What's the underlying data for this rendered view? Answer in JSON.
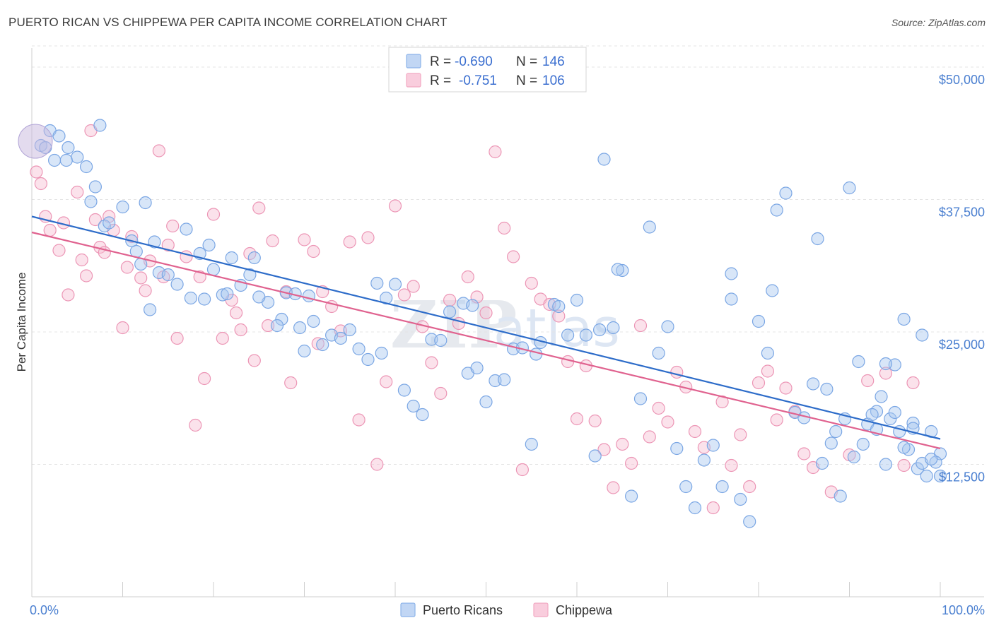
{
  "title": "PUERTO RICAN VS CHIPPEWA PER CAPITA INCOME CORRELATION CHART",
  "source": "Source: ZipAtlas.com",
  "watermark": {
    "zip": "ZIP",
    "atlas": "atlas"
  },
  "colors": {
    "blue": "#8db4ea",
    "blue_line": "#2d6cc9",
    "pink": "#f2a9c3",
    "pink_line": "#e0628f",
    "tick": "#4a7fd0"
  },
  "legend": {
    "r_label": "R =",
    "n_label": "N =",
    "rows": [
      {
        "r": "-0.690",
        "n": "146"
      },
      {
        "r": "-0.751",
        "n": "106"
      }
    ]
  },
  "chart_data": {
    "type": "scatter",
    "ylabel": "Per Capita Income",
    "x_tick_labels": [
      "0.0%",
      "100.0%"
    ],
    "y_tick_labels": [
      "$12,500",
      "$25,000",
      "$37,500",
      "$50,000"
    ],
    "y_ticks": [
      12500,
      25000,
      37500,
      50000
    ],
    "xlim": [
      0,
      100
    ],
    "ylim": [
      0,
      51000
    ],
    "grid": true,
    "legend_position": "top-center",
    "series": [
      {
        "name": "Puerto Ricans",
        "color": "#8db4ea",
        "trend": [
          [
            0,
            35900
          ],
          [
            100,
            14900
          ]
        ],
        "points": [
          [
            1,
            42.6
          ],
          [
            2,
            44.0
          ],
          [
            1.5,
            42.4
          ],
          [
            3,
            43.5
          ],
          [
            2.5,
            41.2
          ],
          [
            4,
            42.4
          ],
          [
            5,
            41.5
          ],
          [
            6,
            40.6
          ],
          [
            7,
            38.7
          ],
          [
            6.5,
            37.3
          ],
          [
            3.8,
            41.2
          ],
          [
            7.5,
            44.5
          ],
          [
            8,
            35.0
          ],
          [
            8.5,
            35.3
          ],
          [
            10,
            36.8
          ],
          [
            11,
            33.6
          ],
          [
            12.5,
            37.2
          ],
          [
            11.5,
            32.6
          ],
          [
            12,
            31.4
          ],
          [
            13.5,
            33.5
          ],
          [
            14,
            30.6
          ],
          [
            13,
            27.1
          ],
          [
            15,
            30.4
          ],
          [
            16,
            29.5
          ],
          [
            17,
            34.7
          ],
          [
            18.5,
            32.4
          ],
          [
            19,
            28.1
          ],
          [
            17.5,
            28.2
          ],
          [
            20,
            30.9
          ],
          [
            21,
            28.5
          ],
          [
            22,
            32.0
          ],
          [
            19.5,
            33.2
          ],
          [
            21.5,
            28.6
          ],
          [
            23,
            29.4
          ],
          [
            24.5,
            32.0
          ],
          [
            24,
            30.4
          ],
          [
            26,
            27.8
          ],
          [
            25,
            28.3
          ],
          [
            27.5,
            26.2
          ],
          [
            28,
            28.7
          ],
          [
            27,
            25.6
          ],
          [
            29,
            28.6
          ],
          [
            30.5,
            28.4
          ],
          [
            31,
            26.0
          ],
          [
            29.5,
            25.4
          ],
          [
            32,
            23.8
          ],
          [
            33,
            24.7
          ],
          [
            34,
            24.4
          ],
          [
            35,
            25.2
          ],
          [
            36,
            23.4
          ],
          [
            37,
            22.4
          ],
          [
            38,
            29.6
          ],
          [
            39,
            28.2
          ],
          [
            40,
            29.5
          ],
          [
            41,
            19.5
          ],
          [
            42,
            18.0
          ],
          [
            43,
            17.2
          ],
          [
            44,
            24.3
          ],
          [
            45,
            24.2
          ],
          [
            46,
            26.9
          ],
          [
            47.5,
            27.7
          ],
          [
            48,
            21.1
          ],
          [
            49,
            21.6
          ],
          [
            50,
            18.4
          ],
          [
            51,
            20.4
          ],
          [
            52,
            20.5
          ],
          [
            53,
            23.4
          ],
          [
            54,
            23.5
          ],
          [
            55,
            14.4
          ],
          [
            56,
            24.0
          ],
          [
            57.5,
            27.6
          ],
          [
            58,
            27.4
          ],
          [
            59,
            24.7
          ],
          [
            60,
            28.0
          ],
          [
            61,
            24.7
          ],
          [
            62,
            13.3
          ],
          [
            63,
            41.3
          ],
          [
            64,
            25.4
          ],
          [
            65,
            30.8
          ],
          [
            66,
            9.5
          ],
          [
            67,
            18.7
          ],
          [
            68,
            34.9
          ],
          [
            69,
            23.0
          ],
          [
            70,
            25.5
          ],
          [
            71,
            14.0
          ],
          [
            72,
            10.4
          ],
          [
            73,
            8.4
          ],
          [
            74,
            12.9
          ],
          [
            75,
            14.3
          ],
          [
            76,
            10.4
          ],
          [
            77,
            28.1
          ],
          [
            78,
            9.2
          ],
          [
            79,
            7.1
          ],
          [
            80,
            26.0
          ],
          [
            81,
            23.0
          ],
          [
            82,
            36.5
          ],
          [
            83,
            38.1
          ],
          [
            84,
            17.4
          ],
          [
            85,
            16.9
          ],
          [
            86,
            20.1
          ],
          [
            87,
            12.6
          ],
          [
            88,
            14.5
          ],
          [
            89,
            9.5
          ],
          [
            90,
            38.6
          ],
          [
            91,
            22.2
          ],
          [
            92,
            16.3
          ],
          [
            93,
            17.5
          ],
          [
            94,
            12.5
          ],
          [
            95,
            21.9
          ],
          [
            96,
            26.2
          ],
          [
            97,
            16.4
          ],
          [
            98,
            24.7
          ],
          [
            99,
            15.6
          ],
          [
            100,
            13.5
          ],
          [
            87.5,
            19.6
          ],
          [
            88.5,
            15.6
          ],
          [
            89.5,
            16.8
          ],
          [
            90.5,
            13.2
          ],
          [
            91.5,
            14.4
          ],
          [
            92.5,
            17.2
          ],
          [
            93.5,
            18.9
          ],
          [
            94.5,
            16.8
          ],
          [
            95.5,
            15.6
          ],
          [
            96.5,
            13.9
          ],
          [
            97.5,
            12.1
          ],
          [
            98.5,
            11.4
          ],
          [
            99.5,
            12.7
          ],
          [
            96,
            14.1
          ],
          [
            95,
            17.4
          ],
          [
            94,
            22.0
          ],
          [
            93,
            15.8
          ],
          [
            97,
            15.9
          ],
          [
            98,
            12.6
          ],
          [
            99,
            13.0
          ],
          [
            100,
            11.4
          ],
          [
            77,
            30.5
          ],
          [
            81.5,
            28.9
          ],
          [
            86.5,
            33.8
          ],
          [
            48.5,
            27.5
          ],
          [
            38.5,
            23.0
          ],
          [
            55.5,
            22.9
          ],
          [
            64.5,
            30.9
          ],
          [
            30,
            23.2
          ],
          [
            62.5,
            25.2
          ]
        ]
      },
      {
        "name": "Chippewa",
        "color": "#f2a9c3",
        "trend": [
          [
            0,
            34400
          ],
          [
            100,
            14000
          ]
        ],
        "points": [
          [
            0.5,
            40.1
          ],
          [
            1,
            39.0
          ],
          [
            1.5,
            35.9
          ],
          [
            2,
            34.6
          ],
          [
            3,
            32.7
          ],
          [
            3.5,
            35.3
          ],
          [
            4,
            28.5
          ],
          [
            5,
            38.2
          ],
          [
            5.5,
            31.8
          ],
          [
            6,
            30.3
          ],
          [
            6.5,
            44.0
          ],
          [
            7,
            35.6
          ],
          [
            7.5,
            33.0
          ],
          [
            8,
            32.5
          ],
          [
            8.5,
            35.9
          ],
          [
            9,
            34.6
          ],
          [
            10,
            25.4
          ],
          [
            10.5,
            31.1
          ],
          [
            11,
            34.0
          ],
          [
            12,
            30.1
          ],
          [
            12.5,
            28.9
          ],
          [
            13,
            31.7
          ],
          [
            14,
            42.1
          ],
          [
            14.5,
            30.2
          ],
          [
            15,
            33.2
          ],
          [
            15.5,
            35.0
          ],
          [
            16,
            24.4
          ],
          [
            17,
            32.1
          ],
          [
            18,
            16.2
          ],
          [
            18.5,
            30.2
          ],
          [
            19,
            20.6
          ],
          [
            20,
            36.1
          ],
          [
            21,
            24.4
          ],
          [
            22,
            28.0
          ],
          [
            22.5,
            26.8
          ],
          [
            23,
            25.2
          ],
          [
            24,
            32.4
          ],
          [
            24.5,
            22.3
          ],
          [
            25,
            36.7
          ],
          [
            26,
            25.6
          ],
          [
            26.5,
            33.6
          ],
          [
            28,
            28.8
          ],
          [
            28.5,
            20.2
          ],
          [
            30,
            33.7
          ],
          [
            31,
            32.6
          ],
          [
            31.5,
            23.9
          ],
          [
            32,
            28.8
          ],
          [
            33,
            27.4
          ],
          [
            34,
            25.1
          ],
          [
            35,
            33.5
          ],
          [
            36,
            16.7
          ],
          [
            37,
            33.9
          ],
          [
            38,
            12.5
          ],
          [
            39,
            20.3
          ],
          [
            40,
            36.9
          ],
          [
            41,
            28.5
          ],
          [
            42,
            29.3
          ],
          [
            43,
            25.5
          ],
          [
            44,
            22.1
          ],
          [
            45,
            19.2
          ],
          [
            46,
            28.0
          ],
          [
            47,
            25.8
          ],
          [
            48,
            30.2
          ],
          [
            49,
            28.3
          ],
          [
            50,
            26.8
          ],
          [
            51,
            42.0
          ],
          [
            52,
            34.8
          ],
          [
            53,
            32.1
          ],
          [
            54,
            12.0
          ],
          [
            55,
            29.6
          ],
          [
            56,
            28.1
          ],
          [
            57,
            27.6
          ],
          [
            58,
            26.5
          ],
          [
            59,
            22.2
          ],
          [
            60,
            16.8
          ],
          [
            61,
            21.8
          ],
          [
            62,
            16.6
          ],
          [
            63,
            13.9
          ],
          [
            64,
            10.3
          ],
          [
            65,
            14.4
          ],
          [
            66,
            12.6
          ],
          [
            67,
            25.6
          ],
          [
            68,
            15.1
          ],
          [
            69,
            17.8
          ],
          [
            70,
            16.5
          ],
          [
            71,
            21.2
          ],
          [
            72,
            19.8
          ],
          [
            73,
            15.6
          ],
          [
            74,
            14.1
          ],
          [
            75,
            8.4
          ],
          [
            76,
            18.4
          ],
          [
            77,
            12.4
          ],
          [
            78,
            15.3
          ],
          [
            79,
            10.4
          ],
          [
            80,
            20.2
          ],
          [
            81,
            21.3
          ],
          [
            82,
            16.7
          ],
          [
            83,
            19.7
          ],
          [
            84,
            17.5
          ],
          [
            85,
            13.5
          ],
          [
            86,
            12.2
          ],
          [
            88,
            9.9
          ],
          [
            90,
            13.4
          ],
          [
            92,
            20.4
          ],
          [
            94,
            21.1
          ],
          [
            96,
            12.4
          ],
          [
            97,
            20.2
          ]
        ]
      }
    ]
  }
}
